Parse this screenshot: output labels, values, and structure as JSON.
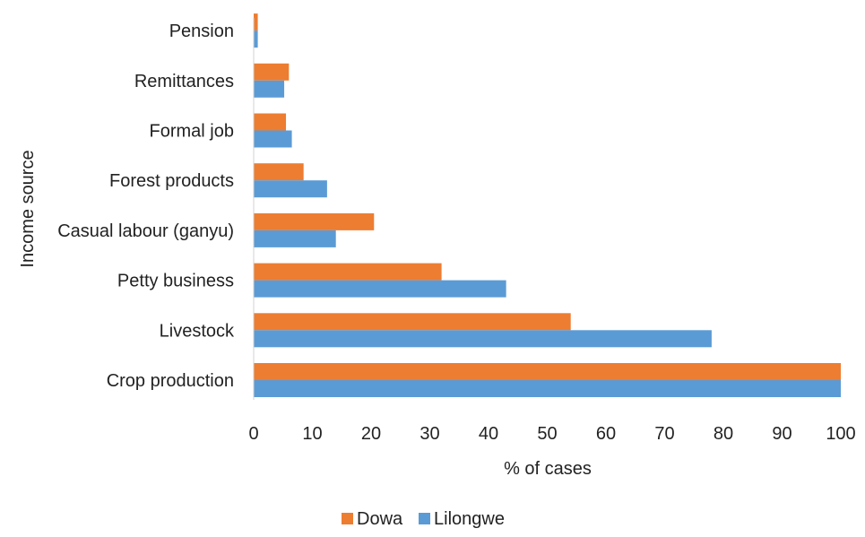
{
  "chart_data": {
    "type": "bar",
    "orientation": "horizontal",
    "categories": [
      "Crop production",
      "Livestock",
      "Petty business",
      "Casual labour (ganyu)",
      "Forest products",
      "Formal job",
      "Remittances",
      "Pension"
    ],
    "series": [
      {
        "name": "Dowa",
        "color": "#ED7D31",
        "values": [
          100,
          54,
          32,
          20.5,
          8.5,
          5.5,
          6,
          0.7
        ]
      },
      {
        "name": "Lilongwe",
        "color": "#5B9BD5",
        "values": [
          100,
          78,
          43,
          14,
          12.5,
          6.5,
          5.2,
          0.7
        ]
      }
    ],
    "xlabel": "%  of cases",
    "ylabel": "Income source",
    "xlim": [
      0,
      100
    ],
    "xticks": [
      "0",
      "10",
      "20",
      "30",
      "40",
      "50",
      "60",
      "70",
      "80",
      "90",
      "100"
    ],
    "grid": false,
    "legend": "bottom"
  }
}
